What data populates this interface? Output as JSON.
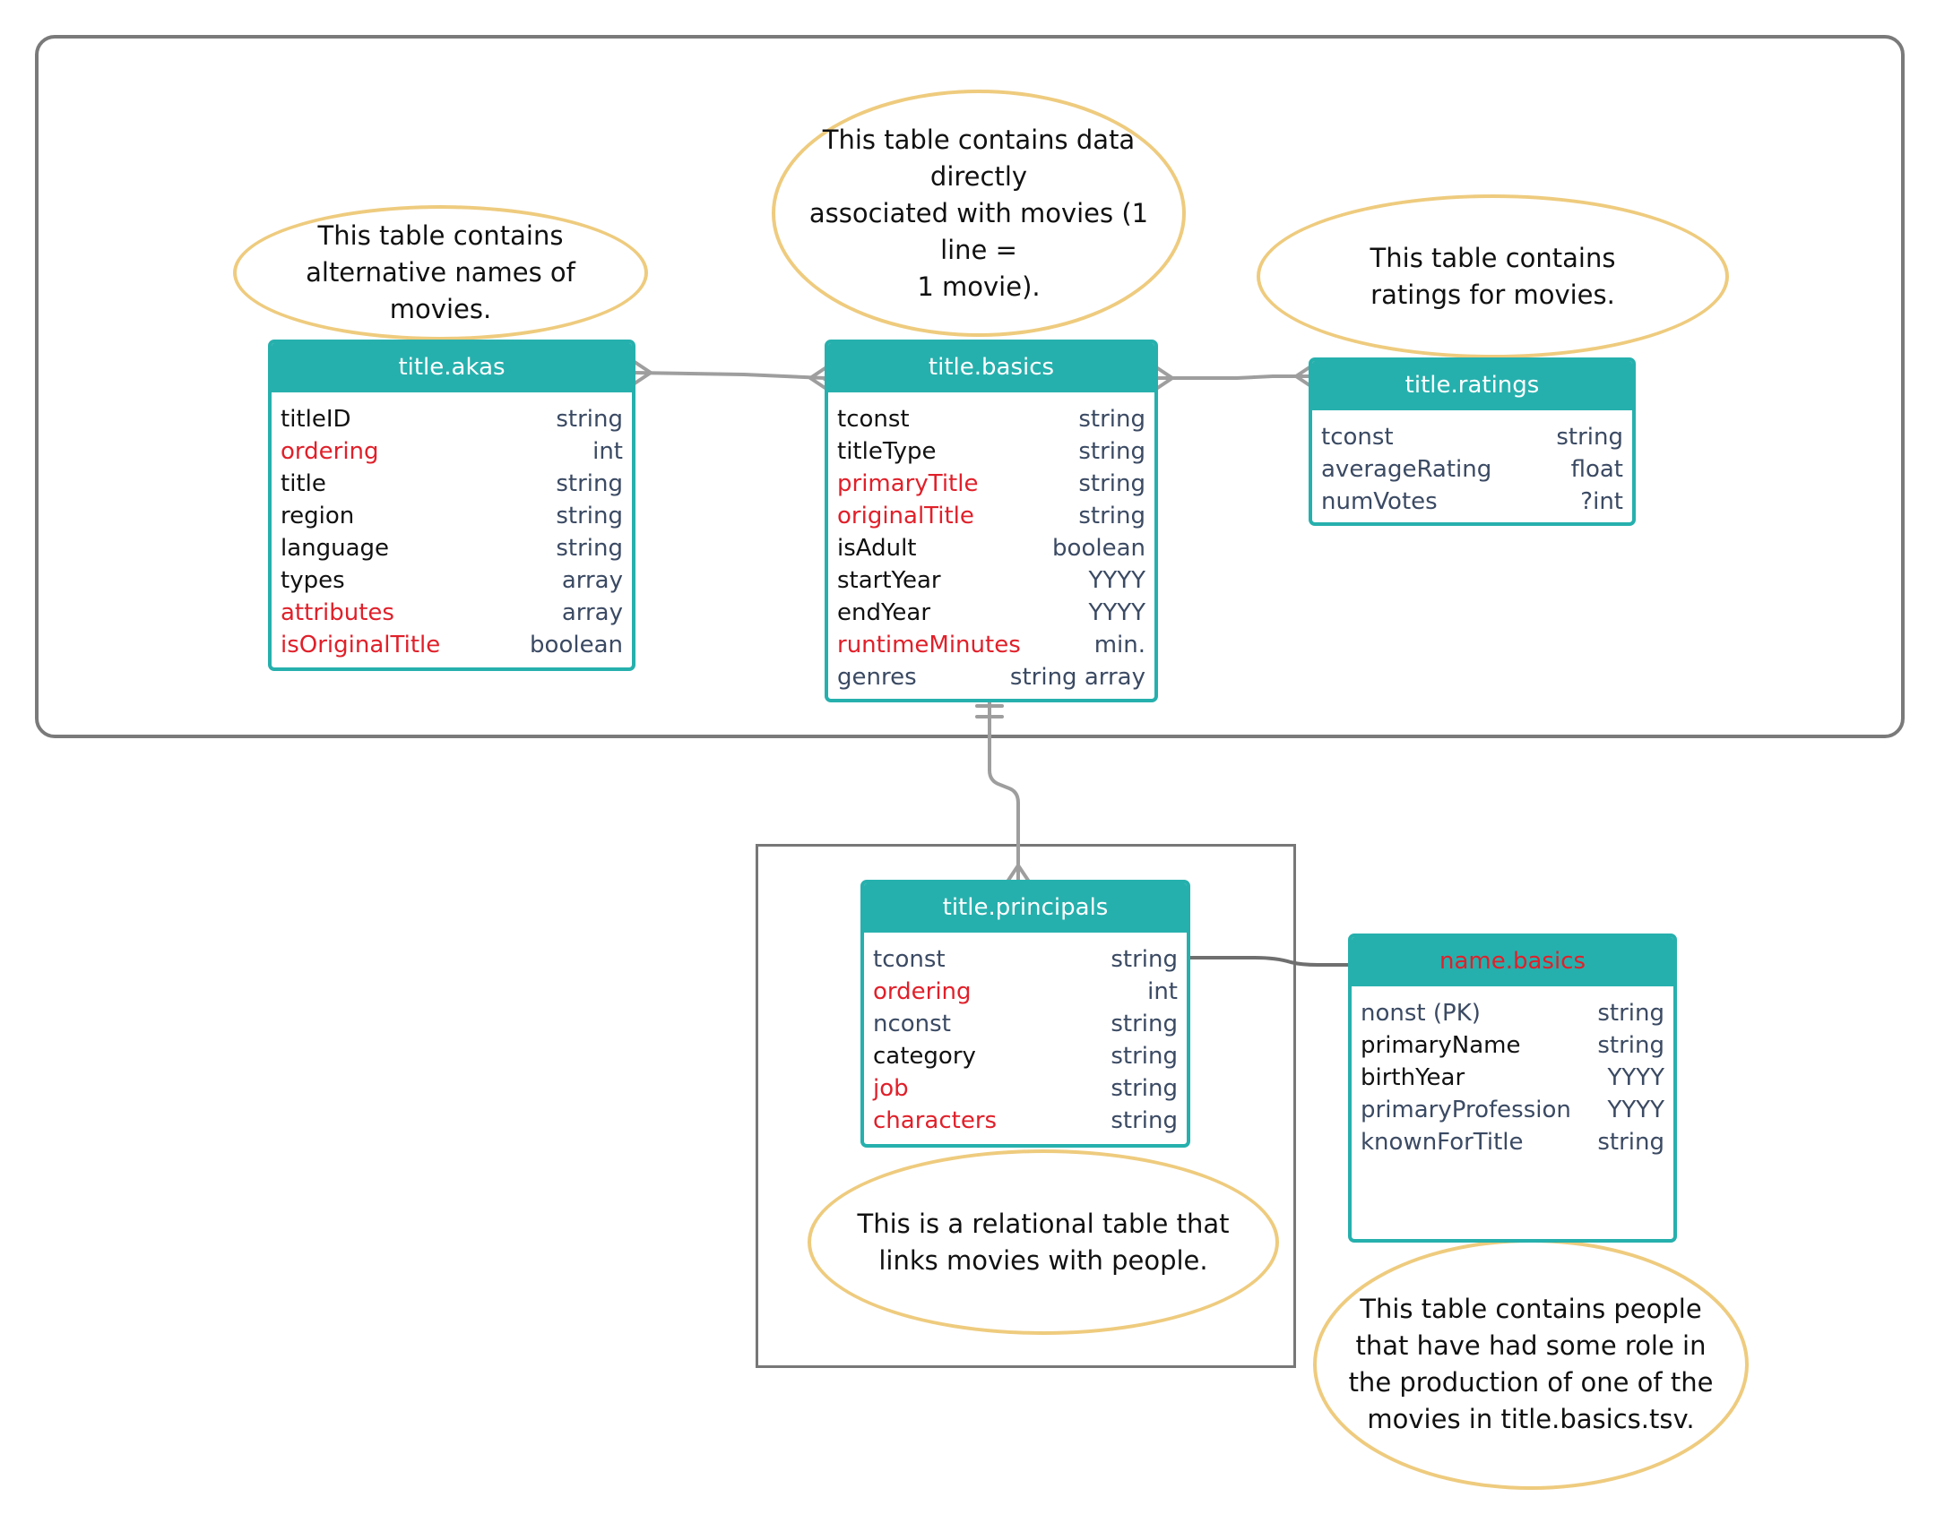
{
  "colors": {
    "teal": "#26b0ad",
    "note_border": "#eecb7e",
    "red": "#e0202a",
    "connector": "#9e9e9e"
  },
  "notes": {
    "akas": "This table contains alternative names of movies.",
    "basics_1": "This table contains data directly",
    "basics_2": "associated with movies (1 line =",
    "basics_3": "1 movie).",
    "ratings": "This table contains ratings for movies.",
    "principals": "This is a relational table that links movies with people.",
    "names": "This table contains people that have had some role in the production of one of the movies in title.basics.tsv."
  },
  "tables": {
    "akas": {
      "name": "title.akas",
      "rows": [
        {
          "field": "titleID",
          "type": "string",
          "style": "key"
        },
        {
          "field": "ordering",
          "type": "int",
          "style": "red"
        },
        {
          "field": "title",
          "type": "string",
          "style": "key"
        },
        {
          "field": "region",
          "type": "string",
          "style": "key"
        },
        {
          "field": "language",
          "type": "string",
          "style": "key"
        },
        {
          "field": "types",
          "type": "array",
          "style": "key"
        },
        {
          "field": "attributes",
          "type": "array",
          "style": "red"
        },
        {
          "field": "isOriginalTitle",
          "type": "boolean",
          "style": "red"
        }
      ]
    },
    "basics": {
      "name": "title.basics",
      "rows": [
        {
          "field": "tconst",
          "type": "string",
          "style": "key"
        },
        {
          "field": "titleType",
          "type": "string",
          "style": "key"
        },
        {
          "field": "primaryTitle",
          "type": "string",
          "style": "red"
        },
        {
          "field": "originalTitle",
          "type": "string",
          "style": "red"
        },
        {
          "field": "isAdult",
          "type": "boolean",
          "style": "key"
        },
        {
          "field": "startYear",
          "type": "YYYY",
          "style": "key"
        },
        {
          "field": "endYear",
          "type": "YYYY",
          "style": "key"
        },
        {
          "field": "runtimeMinutes",
          "type": "min.",
          "style": "red"
        },
        {
          "field": "genres",
          "type": "string array",
          "style": "std"
        }
      ]
    },
    "ratings": {
      "name": "title.ratings",
      "rows": [
        {
          "field": "tconst",
          "type": "string",
          "style": "std"
        },
        {
          "field": "averageRating",
          "type": "float",
          "style": "std"
        },
        {
          "field": "numVotes",
          "type": "?int",
          "style": "std"
        }
      ]
    },
    "principals": {
      "name": "title.principals",
      "rows": [
        {
          "field": "tconst",
          "type": "string",
          "style": "std"
        },
        {
          "field": "ordering",
          "type": "int",
          "style": "red"
        },
        {
          "field": "nconst",
          "type": "string",
          "style": "std"
        },
        {
          "field": "category",
          "type": "string",
          "style": "key"
        },
        {
          "field": "job",
          "type": "string",
          "style": "red"
        },
        {
          "field": "characters",
          "type": "string",
          "style": "red"
        }
      ]
    },
    "names": {
      "name": "name.basics",
      "rows": [
        {
          "field": "nonst (PK)",
          "type": "string",
          "style": "std"
        },
        {
          "field": "primaryName",
          "type": "string",
          "style": "key"
        },
        {
          "field": "birthYear",
          "type": "YYYY",
          "style": "key"
        },
        {
          "field": "primaryProfession",
          "type": "YYYY",
          "style": "std"
        },
        {
          "field": "knownForTitle",
          "type": "string",
          "style": "std"
        }
      ]
    }
  }
}
